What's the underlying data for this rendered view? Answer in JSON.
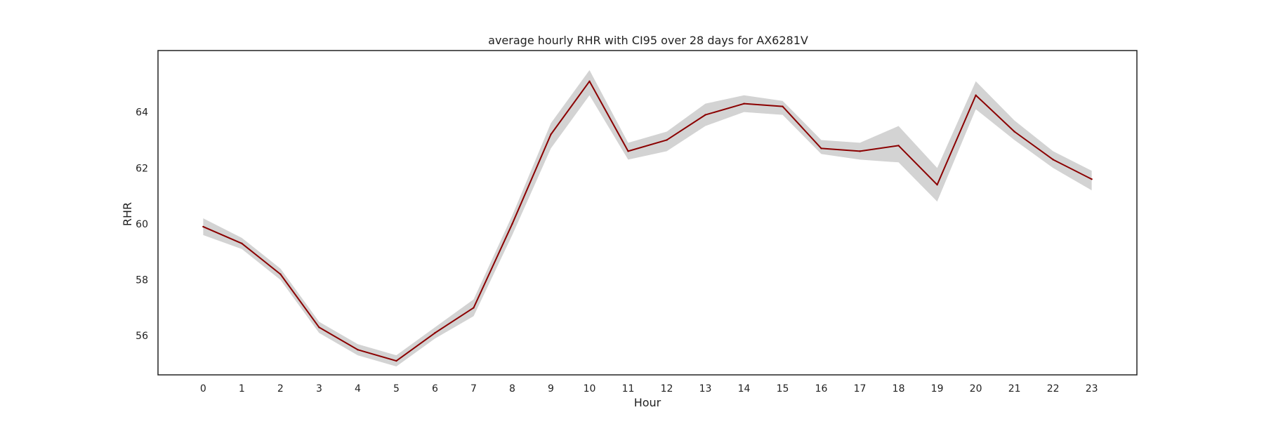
{
  "chart_data": {
    "type": "line",
    "title": "average hourly RHR with CI95 over 28 days for AX6281V",
    "xlabel": "Hour",
    "ylabel": "RHR",
    "x": [
      0,
      1,
      2,
      3,
      4,
      5,
      6,
      7,
      8,
      9,
      10,
      11,
      12,
      13,
      14,
      15,
      16,
      17,
      18,
      19,
      20,
      21,
      22,
      23
    ],
    "series": [
      {
        "values": [
          59.9,
          59.3,
          58.2,
          56.3,
          55.5,
          55.1,
          56.1,
          57.0,
          60.0,
          63.2,
          65.1,
          62.6,
          63.0,
          63.9,
          64.3,
          64.2,
          62.7,
          62.6,
          62.8,
          61.4,
          64.6,
          63.3,
          62.3,
          61.6
        ],
        "ci_lower": [
          59.6,
          59.1,
          58.0,
          56.1,
          55.3,
          54.9,
          55.9,
          56.7,
          59.6,
          62.7,
          64.6,
          62.3,
          62.6,
          63.5,
          64.0,
          63.9,
          62.5,
          62.3,
          62.2,
          60.8,
          64.1,
          63.0,
          62.0,
          61.2
        ],
        "ci_upper": [
          60.2,
          59.5,
          58.4,
          56.5,
          55.7,
          55.3,
          56.3,
          57.3,
          60.3,
          63.6,
          65.5,
          62.9,
          63.3,
          64.3,
          64.6,
          64.4,
          63.0,
          62.9,
          63.5,
          62.0,
          65.1,
          63.7,
          62.6,
          61.9
        ],
        "color": "#8b0000",
        "ci_color": "#d3d3d3"
      }
    ],
    "x_ticks": [
      "0",
      "1",
      "2",
      "3",
      "4",
      "5",
      "6",
      "7",
      "8",
      "9",
      "10",
      "11",
      "12",
      "13",
      "14",
      "15",
      "16",
      "17",
      "18",
      "19",
      "20",
      "21",
      "22",
      "23"
    ],
    "y_ticks": [
      "56",
      "58",
      "60",
      "62",
      "64"
    ],
    "xlim": [
      -1.17,
      24.17
    ],
    "ylim": [
      54.6,
      66.2
    ],
    "grid": false,
    "legend": "none"
  }
}
